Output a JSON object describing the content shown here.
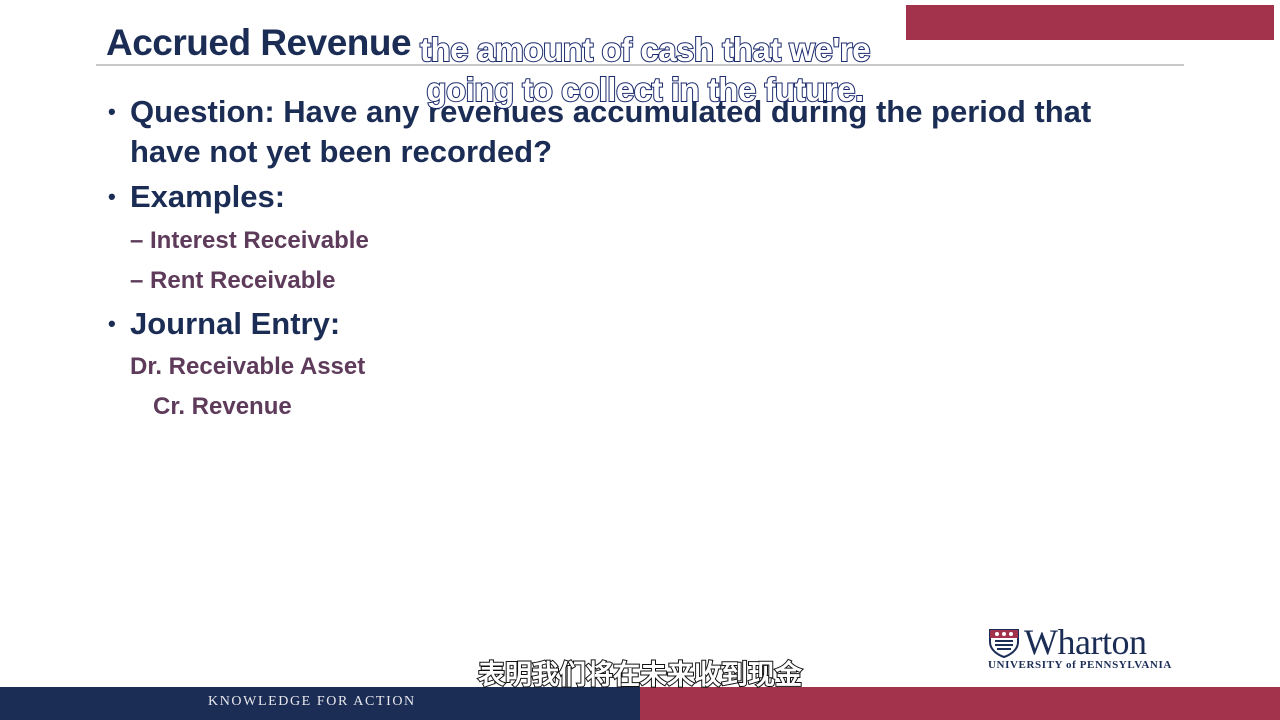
{
  "slide": {
    "title": "Accrued Revenue",
    "bullets": [
      {
        "marker": "•",
        "text": "Question:  Have any revenues accumulated during the period that have not yet been recorded?"
      },
      {
        "marker": "•",
        "text": "Examples:"
      },
      {
        "marker": "•",
        "text": "Journal Entry:"
      }
    ],
    "examples": [
      "– Interest Receivable",
      "– Rent Receivable"
    ],
    "journal_entry": {
      "debit": "Dr. Receivable Asset",
      "credit": "Cr. Revenue"
    }
  },
  "captions": {
    "english": "the amount of cash that we're going to collect in the future.",
    "chinese": "表明我们将在未来收到现金"
  },
  "branding": {
    "logo_name": "Wharton",
    "logo_subline": "UNIVERSITY of PENNSYLVANIA",
    "tagline": "KNOWLEDGE FOR ACTION"
  },
  "colors": {
    "navy": "#1b2d55",
    "maroon": "#a3334c",
    "subitem_purple": "#5e3b5a"
  }
}
